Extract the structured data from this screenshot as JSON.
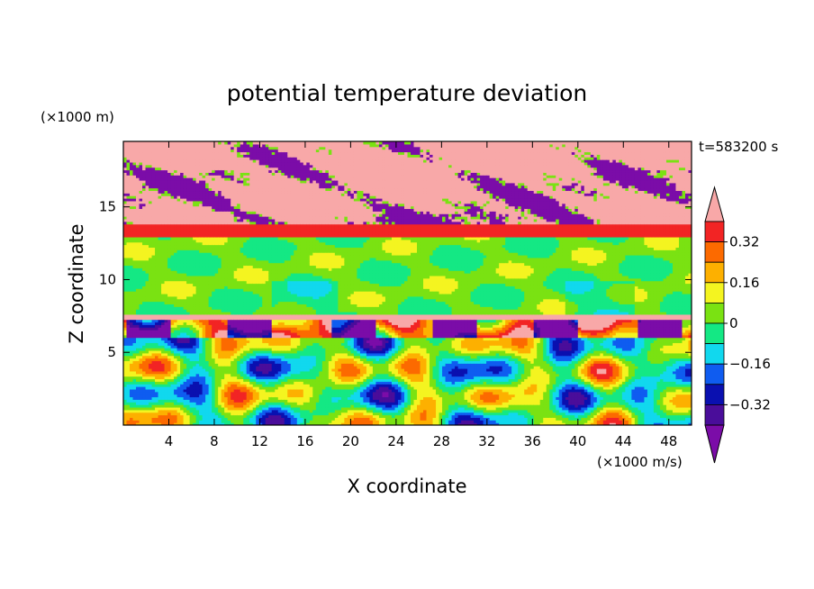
{
  "chart_data": {
    "type": "heatmap",
    "title": "potential temperature deviation",
    "xlabel": "X coordinate",
    "ylabel": "Z coordinate",
    "x_unit": "(×1000 m/s)",
    "y_unit": "(×1000 m)",
    "time_label": "t=583200 s",
    "xlim": [
      0,
      50
    ],
    "ylim": [
      0,
      19.5
    ],
    "x_ticks": [
      4,
      8,
      12,
      16,
      20,
      24,
      28,
      32,
      36,
      40,
      44,
      48
    ],
    "y_ticks": [
      5,
      10,
      15
    ],
    "x_tick_labels": [
      "4",
      "8",
      "12",
      "16",
      "20",
      "24",
      "28",
      "32",
      "36",
      "40",
      "44",
      "48"
    ],
    "y_tick_labels": [
      "5",
      "10",
      "15"
    ],
    "colorbar": {
      "levels": [
        -0.48,
        -0.4,
        -0.32,
        -0.24,
        -0.16,
        -0.08,
        0,
        0.08,
        0.16,
        0.24,
        0.32,
        0.4,
        0.48
      ],
      "labels": [
        "0.32",
        "0.16",
        "0",
        "−0.16",
        "−0.32"
      ],
      "label_values": [
        0.32,
        0.16,
        0,
        -0.16,
        -0.32
      ],
      "colors": [
        "#7b0ca8",
        "#4a0d9a",
        "#0a10b0",
        "#0f5cf0",
        "#11d8ee",
        "#14e884",
        "#7ae212",
        "#f4f420",
        "#fdb000",
        "#fc6a00",
        "#f22424",
        "#f8a8a8"
      ],
      "extend": "both"
    },
    "layers": [
      {
        "z": [
          0,
          7.3
        ],
        "description_value": "mixed bands from -0.48 to 0.48"
      },
      {
        "z": [
          7.3,
          7.6
        ],
        "value": 0.48
      },
      {
        "z": [
          7.6,
          12.9
        ],
        "value": 0.0
      },
      {
        "z": [
          12.9,
          13.8
        ],
        "value": 0.36
      },
      {
        "z": [
          13.8,
          19.5
        ],
        "value": 0.48
      }
    ]
  }
}
